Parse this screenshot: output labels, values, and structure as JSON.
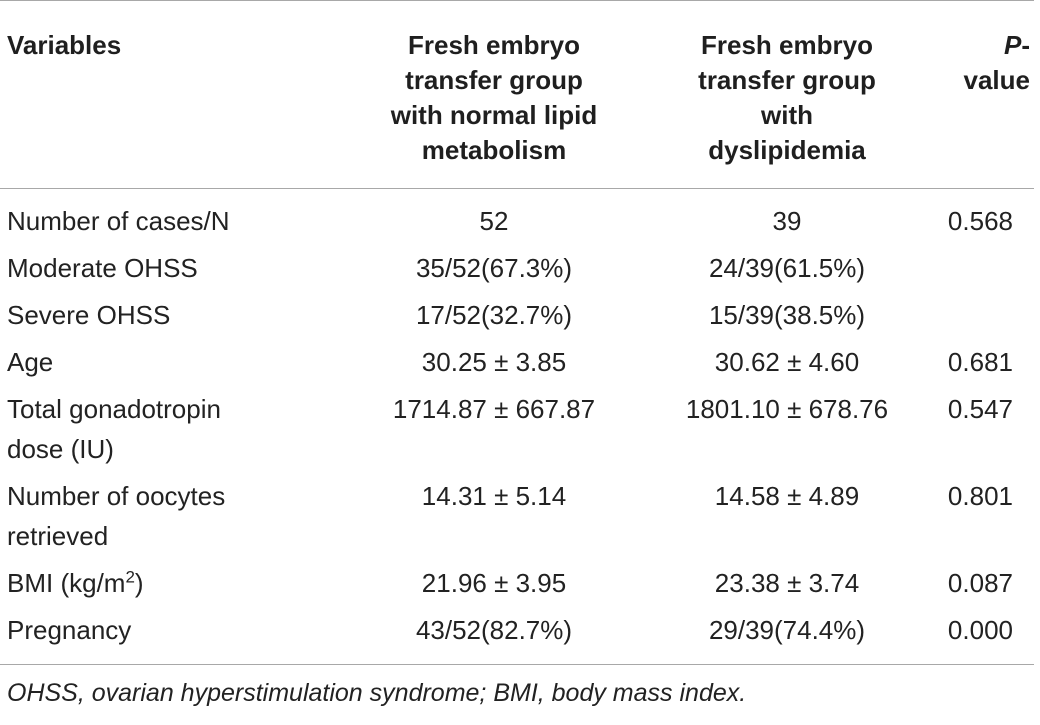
{
  "table": {
    "headers": {
      "variables": "Variables",
      "group_normal": [
        "Fresh embryo",
        "transfer group",
        "with normal lipid",
        "metabolism"
      ],
      "group_dyslipidemia": [
        "Fresh embryo",
        "transfer group",
        "with",
        "dyslipidemia"
      ],
      "pvalue_italic": "P",
      "pvalue_rest": "-value"
    },
    "rows": [
      {
        "label": "Number of cases/N",
        "normal": "52",
        "dyslipidemia": "39",
        "p": "0.568"
      },
      {
        "label": "Moderate OHSS",
        "normal": "35/52(67.3%)",
        "dyslipidemia": "24/39(61.5%)",
        "p": ""
      },
      {
        "label": "Severe OHSS",
        "normal": "17/52(32.7%)",
        "dyslipidemia": "15/39(38.5%)",
        "p": ""
      },
      {
        "label": "Age",
        "normal": "30.25 ± 3.85",
        "dyslipidemia": "30.62 ± 4.60",
        "p": "0.681"
      },
      {
        "label_lines": [
          "Total gonadotropin",
          "dose (IU)"
        ],
        "normal": "1714.87 ± 667.87",
        "dyslipidemia": "1801.10 ± 678.76",
        "p": "0.547"
      },
      {
        "label_lines": [
          "Number of oocytes",
          "retrieved"
        ],
        "normal": "14.31 ± 5.14",
        "dyslipidemia": "14.58 ± 4.89",
        "p": "0.801"
      },
      {
        "label_base": "BMI (kg/m",
        "label_sup": "2",
        "label_end": ")",
        "normal": "21.96 ± 3.95",
        "dyslipidemia": "23.38 ± 3.74",
        "p": "0.087"
      },
      {
        "label": "Pregnancy",
        "normal": "43/52(82.7%)",
        "dyslipidemia": "29/39(74.4%)",
        "p": "0.000"
      }
    ],
    "footnote": "OHSS, ovarian hyperstimulation syndrome; BMI, body mass index."
  }
}
